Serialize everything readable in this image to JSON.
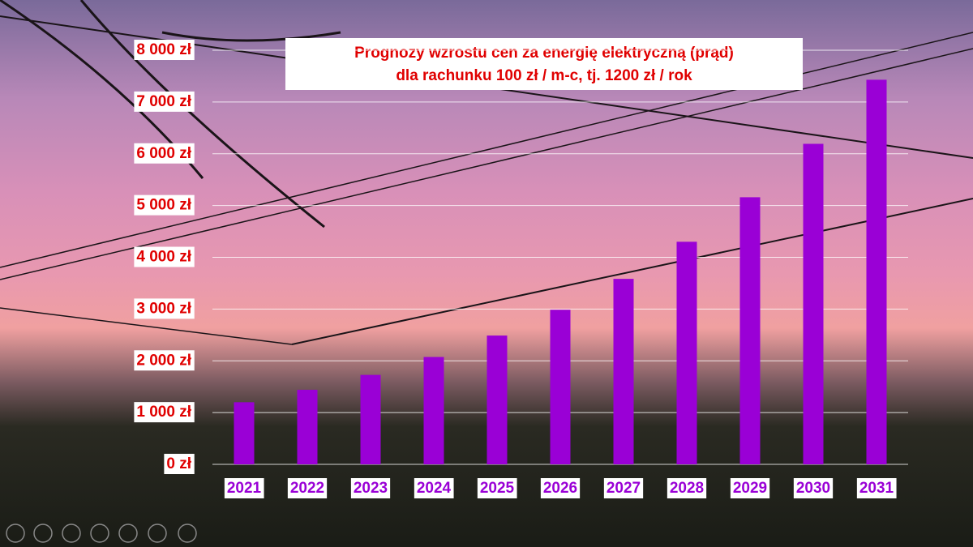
{
  "chart_data": {
    "type": "bar",
    "title": "Prognozy wzrostu cen za energię elektryczną (prąd)",
    "subtitle": "dla rachunku  100 zł / m-c, tj. 1200 zł / rok",
    "categories": [
      "2021",
      "2022",
      "2023",
      "2024",
      "2025",
      "2026",
      "2027",
      "2028",
      "2029",
      "2030",
      "2031"
    ],
    "values": [
      1200,
      1440,
      1728,
      2074,
      2488,
      2986,
      3583,
      4300,
      5160,
      6192,
      7430
    ],
    "color": "#9a00d6",
    "ylim": [
      0,
      8000
    ],
    "yticks": [
      {
        "value": 0,
        "label": "0 zł"
      },
      {
        "value": 1000,
        "label": "1 000 zł"
      },
      {
        "value": 2000,
        "label": "2 000 zł"
      },
      {
        "value": 3000,
        "label": "3 000 zł"
      },
      {
        "value": 4000,
        "label": "4 000 zł"
      },
      {
        "value": 5000,
        "label": "5 000 zł"
      },
      {
        "value": 6000,
        "label": "6 000 zł"
      },
      {
        "value": 7000,
        "label": "7 000 zł"
      },
      {
        "value": 8000,
        "label": "8 000 zł"
      }
    ],
    "grid": true
  }
}
